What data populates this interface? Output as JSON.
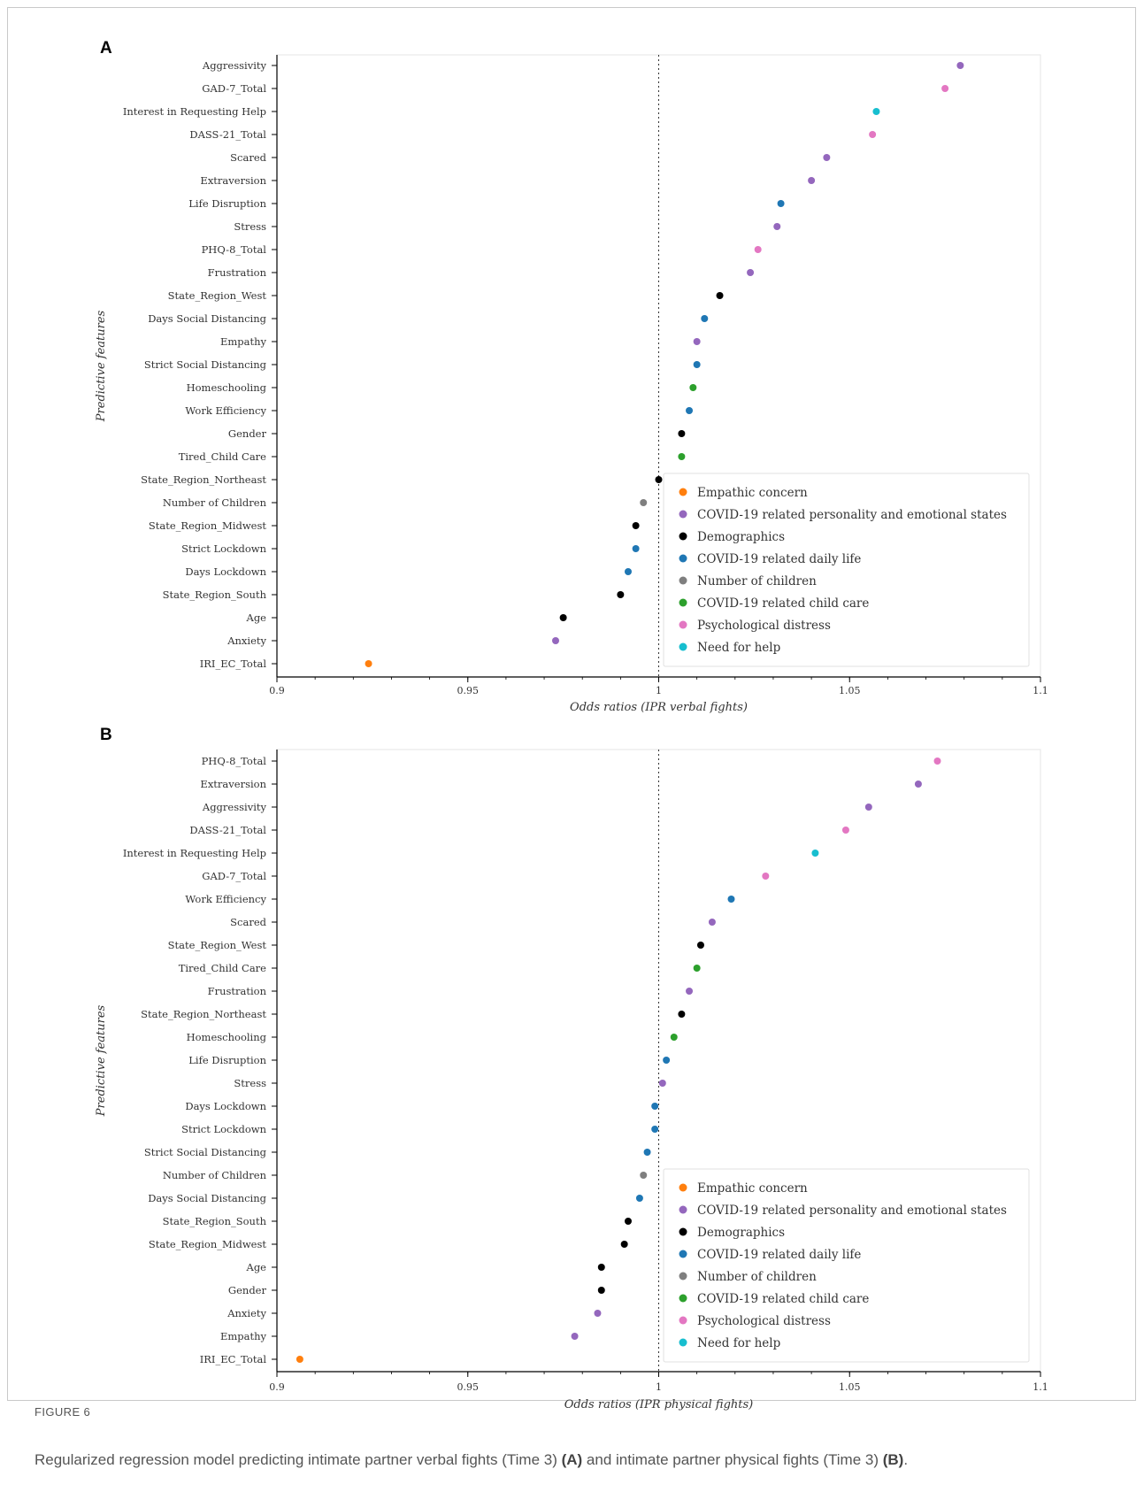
{
  "figure": {
    "label": "FIGURE 6",
    "caption_parts": [
      "Regularized regression model predicting intimate partner verbal fights (Time 3) ",
      "(A)",
      " and intimate partner physical fights (Time 3) ",
      "(B)",
      "."
    ]
  },
  "colors": {
    "Empathic concern": "#ff7f0e",
    "COVID-19 related personality and emotional states": "#9467bd",
    "Demographics": "#000000",
    "COVID-19 related daily life": "#1f77b4",
    "Number of children": "#7f7f7f",
    "COVID-19 related child care": "#2ca02c",
    "Psychological distress": "#e377c2",
    "Need for help": "#17becf"
  },
  "chart_data": [
    {
      "panel": "A",
      "type": "scatter",
      "xlabel": "Odds ratios (IPR verbal fights)",
      "ylabel": "Predictive features",
      "xlim": [
        0.9,
        1.1
      ],
      "xticks": [
        "0.9",
        "0.95",
        "1",
        "1.05",
        "1.1"
      ],
      "reference_line": 1.0,
      "legend_position": "lower-right",
      "legend": [
        "Empathic concern",
        "COVID-19 related personality and emotional states",
        "Demographics",
        "COVID-19 related daily life",
        "Number of children",
        "COVID-19 related child care",
        "Psychological distress",
        "Need for help"
      ],
      "points": [
        {
          "label": "Aggressivity",
          "value": 1.079,
          "group": "COVID-19 related personality and emotional states"
        },
        {
          "label": "GAD-7_Total",
          "value": 1.075,
          "group": "Psychological distress"
        },
        {
          "label": "Interest in Requesting Help",
          "value": 1.057,
          "group": "Need for help"
        },
        {
          "label": "DASS-21_Total",
          "value": 1.056,
          "group": "Psychological distress"
        },
        {
          "label": "Scared",
          "value": 1.044,
          "group": "COVID-19 related personality and emotional states"
        },
        {
          "label": "Extraversion",
          "value": 1.04,
          "group": "COVID-19 related personality and emotional states"
        },
        {
          "label": "Life Disruption",
          "value": 1.032,
          "group": "COVID-19 related daily life"
        },
        {
          "label": "Stress",
          "value": 1.031,
          "group": "COVID-19 related personality and emotional states"
        },
        {
          "label": "PHQ-8_Total",
          "value": 1.026,
          "group": "Psychological distress"
        },
        {
          "label": "Frustration",
          "value": 1.024,
          "group": "COVID-19 related personality and emotional states"
        },
        {
          "label": "State_Region_West",
          "value": 1.016,
          "group": "Demographics"
        },
        {
          "label": "Days Social Distancing",
          "value": 1.012,
          "group": "COVID-19 related daily life"
        },
        {
          "label": "Empathy",
          "value": 1.01,
          "group": "COVID-19 related personality and emotional states"
        },
        {
          "label": "Strict Social Distancing",
          "value": 1.01,
          "group": "COVID-19 related daily life"
        },
        {
          "label": "Homeschooling",
          "value": 1.009,
          "group": "COVID-19 related child care"
        },
        {
          "label": "Work Efficiency",
          "value": 1.008,
          "group": "COVID-19 related daily life"
        },
        {
          "label": "Gender",
          "value": 1.006,
          "group": "Demographics"
        },
        {
          "label": "Tired_Child Care",
          "value": 1.006,
          "group": "COVID-19 related child care"
        },
        {
          "label": "State_Region_Northeast",
          "value": 1.0,
          "group": "Demographics"
        },
        {
          "label": "Number of Children",
          "value": 0.996,
          "group": "Number of children"
        },
        {
          "label": "State_Region_Midwest",
          "value": 0.994,
          "group": "Demographics"
        },
        {
          "label": "Strict Lockdown",
          "value": 0.994,
          "group": "COVID-19 related daily life"
        },
        {
          "label": "Days Lockdown",
          "value": 0.992,
          "group": "COVID-19 related daily life"
        },
        {
          "label": "State_Region_South",
          "value": 0.99,
          "group": "Demographics"
        },
        {
          "label": "Age",
          "value": 0.975,
          "group": "Demographics"
        },
        {
          "label": "Anxiety",
          "value": 0.973,
          "group": "COVID-19 related personality and emotional states"
        },
        {
          "label": "IRI_EC_Total",
          "value": 0.924,
          "group": "Empathic concern"
        }
      ]
    },
    {
      "panel": "B",
      "type": "scatter",
      "xlabel": "Odds ratios (IPR physical fights)",
      "ylabel": "Predictive features",
      "xlim": [
        0.9,
        1.1
      ],
      "xticks": [
        "0.9",
        "0.95",
        "1",
        "1.05",
        "1.1"
      ],
      "reference_line": 1.0,
      "legend_position": "lower-right",
      "legend": [
        "Empathic concern",
        "COVID-19 related personality and emotional states",
        "Demographics",
        "COVID-19 related daily life",
        "Number of children",
        "COVID-19 related child care",
        "Psychological distress",
        "Need for help"
      ],
      "points": [
        {
          "label": "PHQ-8_Total",
          "value": 1.073,
          "group": "Psychological distress"
        },
        {
          "label": "Extraversion",
          "value": 1.068,
          "group": "COVID-19 related personality and emotional states"
        },
        {
          "label": "Aggressivity",
          "value": 1.055,
          "group": "COVID-19 related personality and emotional states"
        },
        {
          "label": "DASS-21_Total",
          "value": 1.049,
          "group": "Psychological distress"
        },
        {
          "label": "Interest in Requesting Help",
          "value": 1.041,
          "group": "Need for help"
        },
        {
          "label": "GAD-7_Total",
          "value": 1.028,
          "group": "Psychological distress"
        },
        {
          "label": "Work Efficiency",
          "value": 1.019,
          "group": "COVID-19 related daily life"
        },
        {
          "label": "Scared",
          "value": 1.014,
          "group": "COVID-19 related personality and emotional states"
        },
        {
          "label": "State_Region_West",
          "value": 1.011,
          "group": "Demographics"
        },
        {
          "label": "Tired_Child Care",
          "value": 1.01,
          "group": "COVID-19 related child care"
        },
        {
          "label": "Frustration",
          "value": 1.008,
          "group": "COVID-19 related personality and emotional states"
        },
        {
          "label": "State_Region_Northeast",
          "value": 1.006,
          "group": "Demographics"
        },
        {
          "label": "Homeschooling",
          "value": 1.004,
          "group": "COVID-19 related child care"
        },
        {
          "label": "Life Disruption",
          "value": 1.002,
          "group": "COVID-19 related daily life"
        },
        {
          "label": "Stress",
          "value": 1.001,
          "group": "COVID-19 related personality and emotional states"
        },
        {
          "label": "Days Lockdown",
          "value": 0.999,
          "group": "COVID-19 related daily life"
        },
        {
          "label": "Strict Lockdown",
          "value": 0.999,
          "group": "COVID-19 related daily life"
        },
        {
          "label": "Strict Social Distancing",
          "value": 0.997,
          "group": "COVID-19 related daily life"
        },
        {
          "label": "Number of Children",
          "value": 0.996,
          "group": "Number of children"
        },
        {
          "label": "Days Social Distancing",
          "value": 0.995,
          "group": "COVID-19 related daily life"
        },
        {
          "label": "State_Region_South",
          "value": 0.992,
          "group": "Demographics"
        },
        {
          "label": "State_Region_Midwest",
          "value": 0.991,
          "group": "Demographics"
        },
        {
          "label": "Age",
          "value": 0.985,
          "group": "Demographics"
        },
        {
          "label": "Gender",
          "value": 0.985,
          "group": "Demographics"
        },
        {
          "label": "Anxiety",
          "value": 0.984,
          "group": "COVID-19 related personality and emotional states"
        },
        {
          "label": "Empathy",
          "value": 0.978,
          "group": "COVID-19 related personality and emotional states"
        },
        {
          "label": "IRI_EC_Total",
          "value": 0.906,
          "group": "Empathic concern"
        }
      ]
    }
  ]
}
